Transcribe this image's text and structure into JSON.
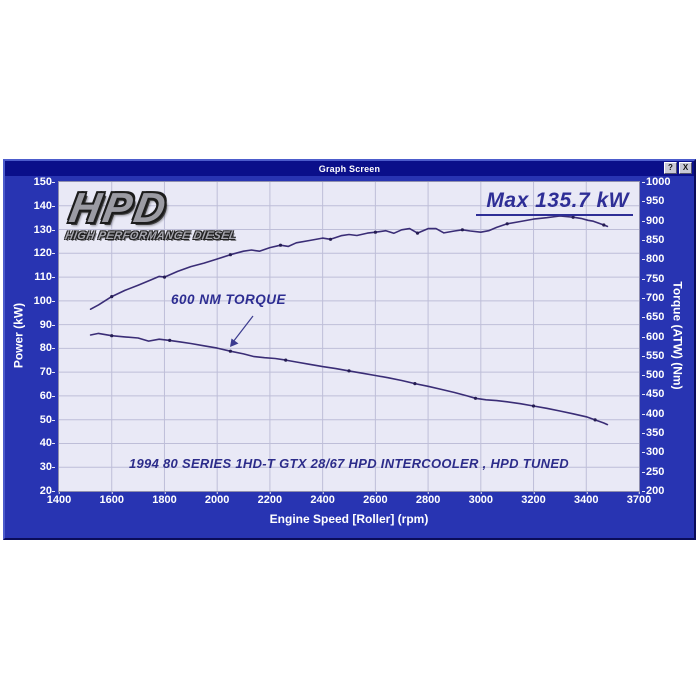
{
  "window": {
    "title": "Graph Screen",
    "help_button": "?",
    "close_button": "X"
  },
  "logo": {
    "main": "HPD",
    "sub": "HIGH PERFORMANCE DIESEL"
  },
  "annotations": {
    "max_power": "Max 135.7 kW",
    "torque_note": "600 NM TORQUE",
    "run_description": "1994 80 SERIES 1HD-T GTX 28/67 HPD INTERCOOLER , HPD TUNED"
  },
  "colors": {
    "window_body": "#2834b2",
    "titlebar": "#0a0f8a",
    "plot_background": "#e9e9f6",
    "gridline": "#bebed8",
    "curve": "#3a2d76",
    "marker": "#241c52",
    "annotation_text": "#2d2d92",
    "tick_text": "#ffffff"
  },
  "chart_data": {
    "type": "line",
    "xlabel": "Engine Speed [Roller] (rpm)",
    "ylabel_left": "Power (kW)",
    "ylabel_right": "Torque (ATW) (Nm)",
    "x_ticks": [
      1400,
      1600,
      1800,
      2000,
      2200,
      2400,
      2600,
      2800,
      3000,
      3200,
      3400,
      3700
    ],
    "y_left_ticks": [
      150,
      140,
      130,
      120,
      110,
      100,
      90,
      80,
      70,
      60,
      50,
      40,
      30,
      20
    ],
    "y_right_ticks": [
      1000,
      950,
      900,
      850,
      800,
      750,
      700,
      650,
      600,
      550,
      500,
      450,
      400,
      350,
      300,
      250,
      200
    ],
    "y_left_range": [
      20,
      150
    ],
    "y_right_range": [
      200,
      1000
    ],
    "grid": true,
    "legend": "none",
    "max_power_kw": 135.7,
    "series": [
      {
        "name": "Power (kW)",
        "axis": "left",
        "points": [
          [
            1520,
            96.5
          ],
          [
            1550,
            98.3
          ],
          [
            1600,
            101.8
          ],
          [
            1650,
            104.4
          ],
          [
            1700,
            106.6
          ],
          [
            1750,
            108.9
          ],
          [
            1780,
            110.3
          ],
          [
            1800,
            110.0
          ],
          [
            1850,
            112.4
          ],
          [
            1900,
            114.4
          ],
          [
            1950,
            115.9
          ],
          [
            2000,
            117.6
          ],
          [
            2050,
            119.4
          ],
          [
            2100,
            120.9
          ],
          [
            2130,
            121.4
          ],
          [
            2160,
            120.9
          ],
          [
            2200,
            122.4
          ],
          [
            2240,
            123.4
          ],
          [
            2270,
            122.9
          ],
          [
            2300,
            124.4
          ],
          [
            2350,
            125.4
          ],
          [
            2400,
            126.4
          ],
          [
            2430,
            125.9
          ],
          [
            2470,
            127.4
          ],
          [
            2500,
            127.9
          ],
          [
            2530,
            127.5
          ],
          [
            2570,
            128.5
          ],
          [
            2600,
            128.9
          ],
          [
            2640,
            129.5
          ],
          [
            2670,
            128.4
          ],
          [
            2700,
            129.9
          ],
          [
            2730,
            130.4
          ],
          [
            2760,
            128.5
          ],
          [
            2800,
            130.4
          ],
          [
            2830,
            130.4
          ],
          [
            2860,
            128.6
          ],
          [
            2900,
            129.4
          ],
          [
            2930,
            129.9
          ],
          [
            2960,
            129.4
          ],
          [
            3000,
            128.9
          ],
          [
            3030,
            129.5
          ],
          [
            3060,
            130.9
          ],
          [
            3100,
            132.4
          ],
          [
            3150,
            133.4
          ],
          [
            3200,
            134.4
          ],
          [
            3250,
            135.0
          ],
          [
            3300,
            135.7
          ],
          [
            3350,
            135.2
          ],
          [
            3380,
            134.7
          ],
          [
            3410,
            133.9
          ],
          [
            3440,
            133.5
          ],
          [
            3470,
            132.7
          ],
          [
            3500,
            131.9
          ],
          [
            3520,
            131.3
          ]
        ]
      },
      {
        "name": "Torque (Nm)",
        "axis": "right",
        "points": [
          [
            1520,
            604
          ],
          [
            1550,
            608
          ],
          [
            1600,
            602
          ],
          [
            1650,
            599
          ],
          [
            1700,
            596
          ],
          [
            1740,
            588
          ],
          [
            1780,
            593
          ],
          [
            1820,
            590
          ],
          [
            1860,
            586
          ],
          [
            1900,
            582
          ],
          [
            1950,
            576
          ],
          [
            2000,
            570
          ],
          [
            2050,
            562
          ],
          [
            2100,
            555
          ],
          [
            2140,
            548
          ],
          [
            2180,
            545
          ],
          [
            2220,
            543
          ],
          [
            2260,
            539
          ],
          [
            2300,
            534
          ],
          [
            2350,
            528
          ],
          [
            2400,
            522
          ],
          [
            2450,
            517
          ],
          [
            2500,
            511
          ],
          [
            2550,
            505
          ],
          [
            2600,
            499
          ],
          [
            2650,
            493
          ],
          [
            2700,
            486
          ],
          [
            2750,
            478
          ],
          [
            2800,
            471
          ],
          [
            2850,
            463
          ],
          [
            2900,
            455
          ],
          [
            2950,
            446
          ],
          [
            2980,
            440
          ],
          [
            3020,
            436
          ],
          [
            3060,
            434
          ],
          [
            3100,
            431
          ],
          [
            3150,
            426
          ],
          [
            3200,
            420
          ],
          [
            3250,
            414
          ],
          [
            3300,
            407
          ],
          [
            3350,
            400
          ],
          [
            3400,
            392
          ],
          [
            3450,
            384
          ],
          [
            3500,
            376
          ],
          [
            3520,
            372
          ]
        ]
      }
    ]
  }
}
